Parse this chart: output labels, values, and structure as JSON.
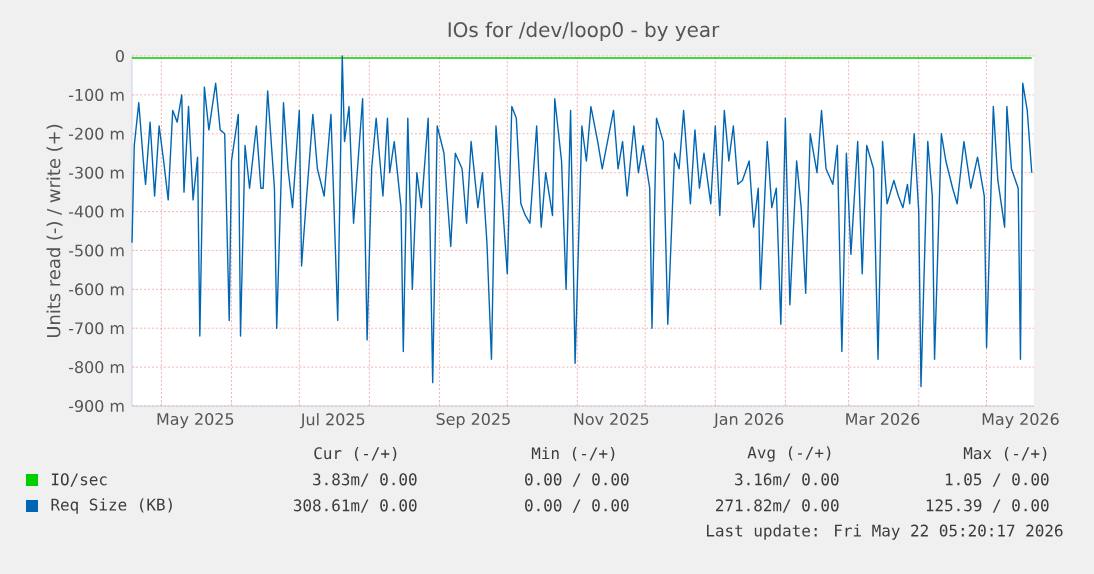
{
  "chart_data": {
    "type": "line",
    "title": "IOs for /dev/loop0 - by year",
    "ylabel": "Units read (-) / write (+)",
    "xlim": [
      "2025-04-18",
      "2026-05-22"
    ],
    "ylim": [
      -900,
      0
    ],
    "xticks": [
      {
        "value": "2025-05-01",
        "label": null
      },
      {
        "value": "2025-06-01",
        "label": null
      },
      {
        "value": "2025-07-01",
        "label": null
      },
      {
        "value": "2025-08-01",
        "label": null
      },
      {
        "value": "2025-09-01",
        "label": null
      },
      {
        "value": "2025-10-01",
        "label": null
      },
      {
        "value": "2025-11-01",
        "label": null
      },
      {
        "value": "2025-12-01",
        "label": null
      },
      {
        "value": "2026-01-01",
        "label": null
      },
      {
        "value": "2026-02-01",
        "label": null
      },
      {
        "value": "2026-03-01",
        "label": null
      },
      {
        "value": "2026-04-01",
        "label": null
      },
      {
        "value": "2026-05-01",
        "label": null
      },
      {
        "value": "2025-05-16",
        "label": "May 2025"
      },
      {
        "value": "2025-07-16",
        "label": "Jul 2025"
      },
      {
        "value": "2025-09-16",
        "label": "Sep 2025"
      },
      {
        "value": "2025-11-16",
        "label": "Nov 2025"
      },
      {
        "value": "2026-01-16",
        "label": "Jan 2026"
      },
      {
        "value": "2026-03-16",
        "label": "Mar 2026"
      },
      {
        "value": "2026-05-16",
        "label": "May 2026"
      }
    ],
    "yticks": [
      {
        "value": 0,
        "label": "0"
      },
      {
        "value": -100,
        "label": "-100 m"
      },
      {
        "value": -200,
        "label": "-200 m"
      },
      {
        "value": -300,
        "label": "-300 m"
      },
      {
        "value": -400,
        "label": "-400 m"
      },
      {
        "value": -500,
        "label": "-500 m"
      },
      {
        "value": -600,
        "label": "-600 m"
      },
      {
        "value": -700,
        "label": "-700 m"
      },
      {
        "value": -800,
        "label": "-800 m"
      },
      {
        "value": -900,
        "label": "-900 m"
      }
    ],
    "grid": true,
    "legend": "bottom",
    "series": [
      {
        "name": "IO/sec",
        "color": "#00cc00",
        "x": [
          "2025-04-18",
          "2025-07-01",
          "2025-10-01",
          "2026-01-01",
          "2026-04-01",
          "2026-05-21"
        ],
        "values": [
          -5,
          -5,
          -5,
          -5,
          -5,
          -5
        ]
      },
      {
        "name": "Req Size (KB)",
        "color": "#0066b3",
        "x": [
          "2025-04-18",
          "2025-04-19",
          "2025-04-21",
          "2025-04-23",
          "2025-04-24",
          "2025-04-26",
          "2025-04-28",
          "2025-04-30",
          "2025-05-02",
          "2025-05-04",
          "2025-05-06",
          "2025-05-08",
          "2025-05-10",
          "2025-05-11",
          "2025-05-13",
          "2025-05-15",
          "2025-05-17",
          "2025-05-18",
          "2025-05-20",
          "2025-05-22",
          "2025-05-25",
          "2025-05-27",
          "2025-05-29",
          "2025-05-31",
          "2025-06-01",
          "2025-06-04",
          "2025-06-05",
          "2025-06-07",
          "2025-06-09",
          "2025-06-12",
          "2025-06-14",
          "2025-06-15",
          "2025-06-17",
          "2025-06-20",
          "2025-06-21",
          "2025-06-24",
          "2025-06-26",
          "2025-06-28",
          "2025-07-01",
          "2025-07-02",
          "2025-07-04",
          "2025-07-07",
          "2025-07-09",
          "2025-07-12",
          "2025-07-15",
          "2025-07-18",
          "2025-07-20",
          "2025-07-21",
          "2025-07-23",
          "2025-07-25",
          "2025-07-29",
          "2025-07-31",
          "2025-08-02",
          "2025-08-04",
          "2025-08-07",
          "2025-08-09",
          "2025-08-10",
          "2025-08-12",
          "2025-08-15",
          "2025-08-16",
          "2025-08-18",
          "2025-08-20",
          "2025-08-22",
          "2025-08-24",
          "2025-08-27",
          "2025-08-29",
          "2025-08-31",
          "2025-09-03",
          "2025-09-06",
          "2025-09-08",
          "2025-09-11",
          "2025-09-13",
          "2025-09-15",
          "2025-09-18",
          "2025-09-20",
          "2025-09-22",
          "2025-09-24",
          "2025-09-26",
          "2025-09-28",
          "2025-09-29",
          "2025-10-01",
          "2025-10-03",
          "2025-10-05",
          "2025-10-07",
          "2025-10-09",
          "2025-10-11",
          "2025-10-14",
          "2025-10-16",
          "2025-10-18",
          "2025-10-21",
          "2025-10-22",
          "2025-10-25",
          "2025-10-27",
          "2025-10-29",
          "2025-10-31",
          "2025-11-03",
          "2025-11-05",
          "2025-11-07",
          "2025-11-10",
          "2025-11-12",
          "2025-11-14",
          "2025-11-17",
          "2025-11-19",
          "2025-11-21",
          "2025-11-23",
          "2025-11-26",
          "2025-11-28",
          "2025-11-30",
          "2025-12-03",
          "2025-12-04",
          "2025-12-06",
          "2025-12-09",
          "2025-12-11",
          "2025-12-14",
          "2025-12-16",
          "2025-12-18",
          "2025-12-21",
          "2025-12-23",
          "2025-12-25",
          "2025-12-27",
          "2025-12-30",
          "2026-01-01",
          "2026-01-03",
          "2026-01-05",
          "2026-01-07",
          "2026-01-09",
          "2026-01-11",
          "2026-01-13",
          "2026-01-16",
          "2026-01-18",
          "2026-01-20",
          "2026-01-21",
          "2026-01-24",
          "2026-01-26",
          "2026-01-28",
          "2026-01-30",
          "2026-02-01",
          "2026-02-03",
          "2026-02-06",
          "2026-02-08",
          "2026-02-10",
          "2026-02-12",
          "2026-02-15",
          "2026-02-17",
          "2026-02-19",
          "2026-02-22",
          "2026-02-24",
          "2026-02-26",
          "2026-02-28",
          "2026-03-02",
          "2026-03-05",
          "2026-03-07",
          "2026-03-09",
          "2026-03-12",
          "2026-03-14",
          "2026-03-16",
          "2026-03-18",
          "2026-03-21",
          "2026-03-23",
          "2026-03-25",
          "2026-03-27",
          "2026-03-28",
          "2026-03-30",
          "2026-04-01",
          "2026-04-02",
          "2026-04-05",
          "2026-04-07",
          "2026-04-08",
          "2026-04-11",
          "2026-04-13",
          "2026-04-16",
          "2026-04-18",
          "2026-04-21",
          "2026-04-24",
          "2026-04-27",
          "2026-04-30",
          "2026-05-01",
          "2026-05-04",
          "2026-05-06",
          "2026-05-09",
          "2026-05-10",
          "2026-05-12",
          "2026-05-15",
          "2026-05-16",
          "2026-05-17",
          "2026-05-19",
          "2026-05-21"
        ],
        "values": [
          -480,
          -230,
          -120,
          -270,
          -330,
          -170,
          -360,
          -180,
          -270,
          -370,
          -140,
          -170,
          -100,
          -350,
          -130,
          -370,
          -260,
          -720,
          -80,
          -190,
          -70,
          -190,
          -200,
          -680,
          -270,
          -150,
          -720,
          -230,
          -340,
          -180,
          -340,
          -340,
          -90,
          -340,
          -700,
          -120,
          -290,
          -390,
          -140,
          -540,
          -380,
          -150,
          -290,
          -360,
          -150,
          -680,
          0,
          -220,
          -130,
          -430,
          -110,
          -730,
          -290,
          -160,
          -360,
          -160,
          -300,
          -220,
          -390,
          -760,
          -160,
          -600,
          -300,
          -390,
          -160,
          -840,
          -180,
          -250,
          -490,
          -250,
          -290,
          -430,
          -220,
          -390,
          -300,
          -480,
          -780,
          -180,
          -320,
          -390,
          -560,
          -130,
          -160,
          -380,
          -410,
          -430,
          -180,
          -440,
          -300,
          -410,
          -110,
          -270,
          -600,
          -140,
          -790,
          -180,
          -270,
          -130,
          -220,
          -290,
          -230,
          -140,
          -290,
          -220,
          -360,
          -180,
          -300,
          -230,
          -340,
          -700,
          -160,
          -220,
          -690,
          -250,
          -290,
          -140,
          -380,
          -190,
          -340,
          -250,
          -380,
          -180,
          -410,
          -140,
          -270,
          -180,
          -330,
          -320,
          -270,
          -440,
          -340,
          -600,
          -220,
          -390,
          -340,
          -690,
          -160,
          -640,
          -270,
          -390,
          -610,
          -200,
          -300,
          -140,
          -290,
          -330,
          -230,
          -760,
          -250,
          -510,
          -220,
          -560,
          -230,
          -290,
          -780,
          -220,
          -380,
          -320,
          -360,
          -390,
          -330,
          -380,
          -200,
          -400,
          -850,
          -220,
          -360,
          -780,
          -200,
          -270,
          -340,
          -380,
          -220,
          -340,
          -260,
          -360,
          -750,
          -130,
          -320,
          -440,
          -130,
          -290,
          -340,
          -780,
          -70,
          -140,
          -300
        ]
      }
    ],
    "annotations": [
      "Cur (-/+)",
      "Min (-/+)",
      "Avg (-/+)",
      "Max (-/+)",
      "3.83m/ 0.00",
      "0.00 / 0.00",
      "3.16m/ 0.00",
      "1.05 / 0.00",
      "308.61m/ 0.00",
      "0.00 / 0.00",
      "271.82m/ 0.00",
      "125.39 / 0.00",
      "Last update: Fri May 22 05:20:17 2026"
    ]
  }
}
